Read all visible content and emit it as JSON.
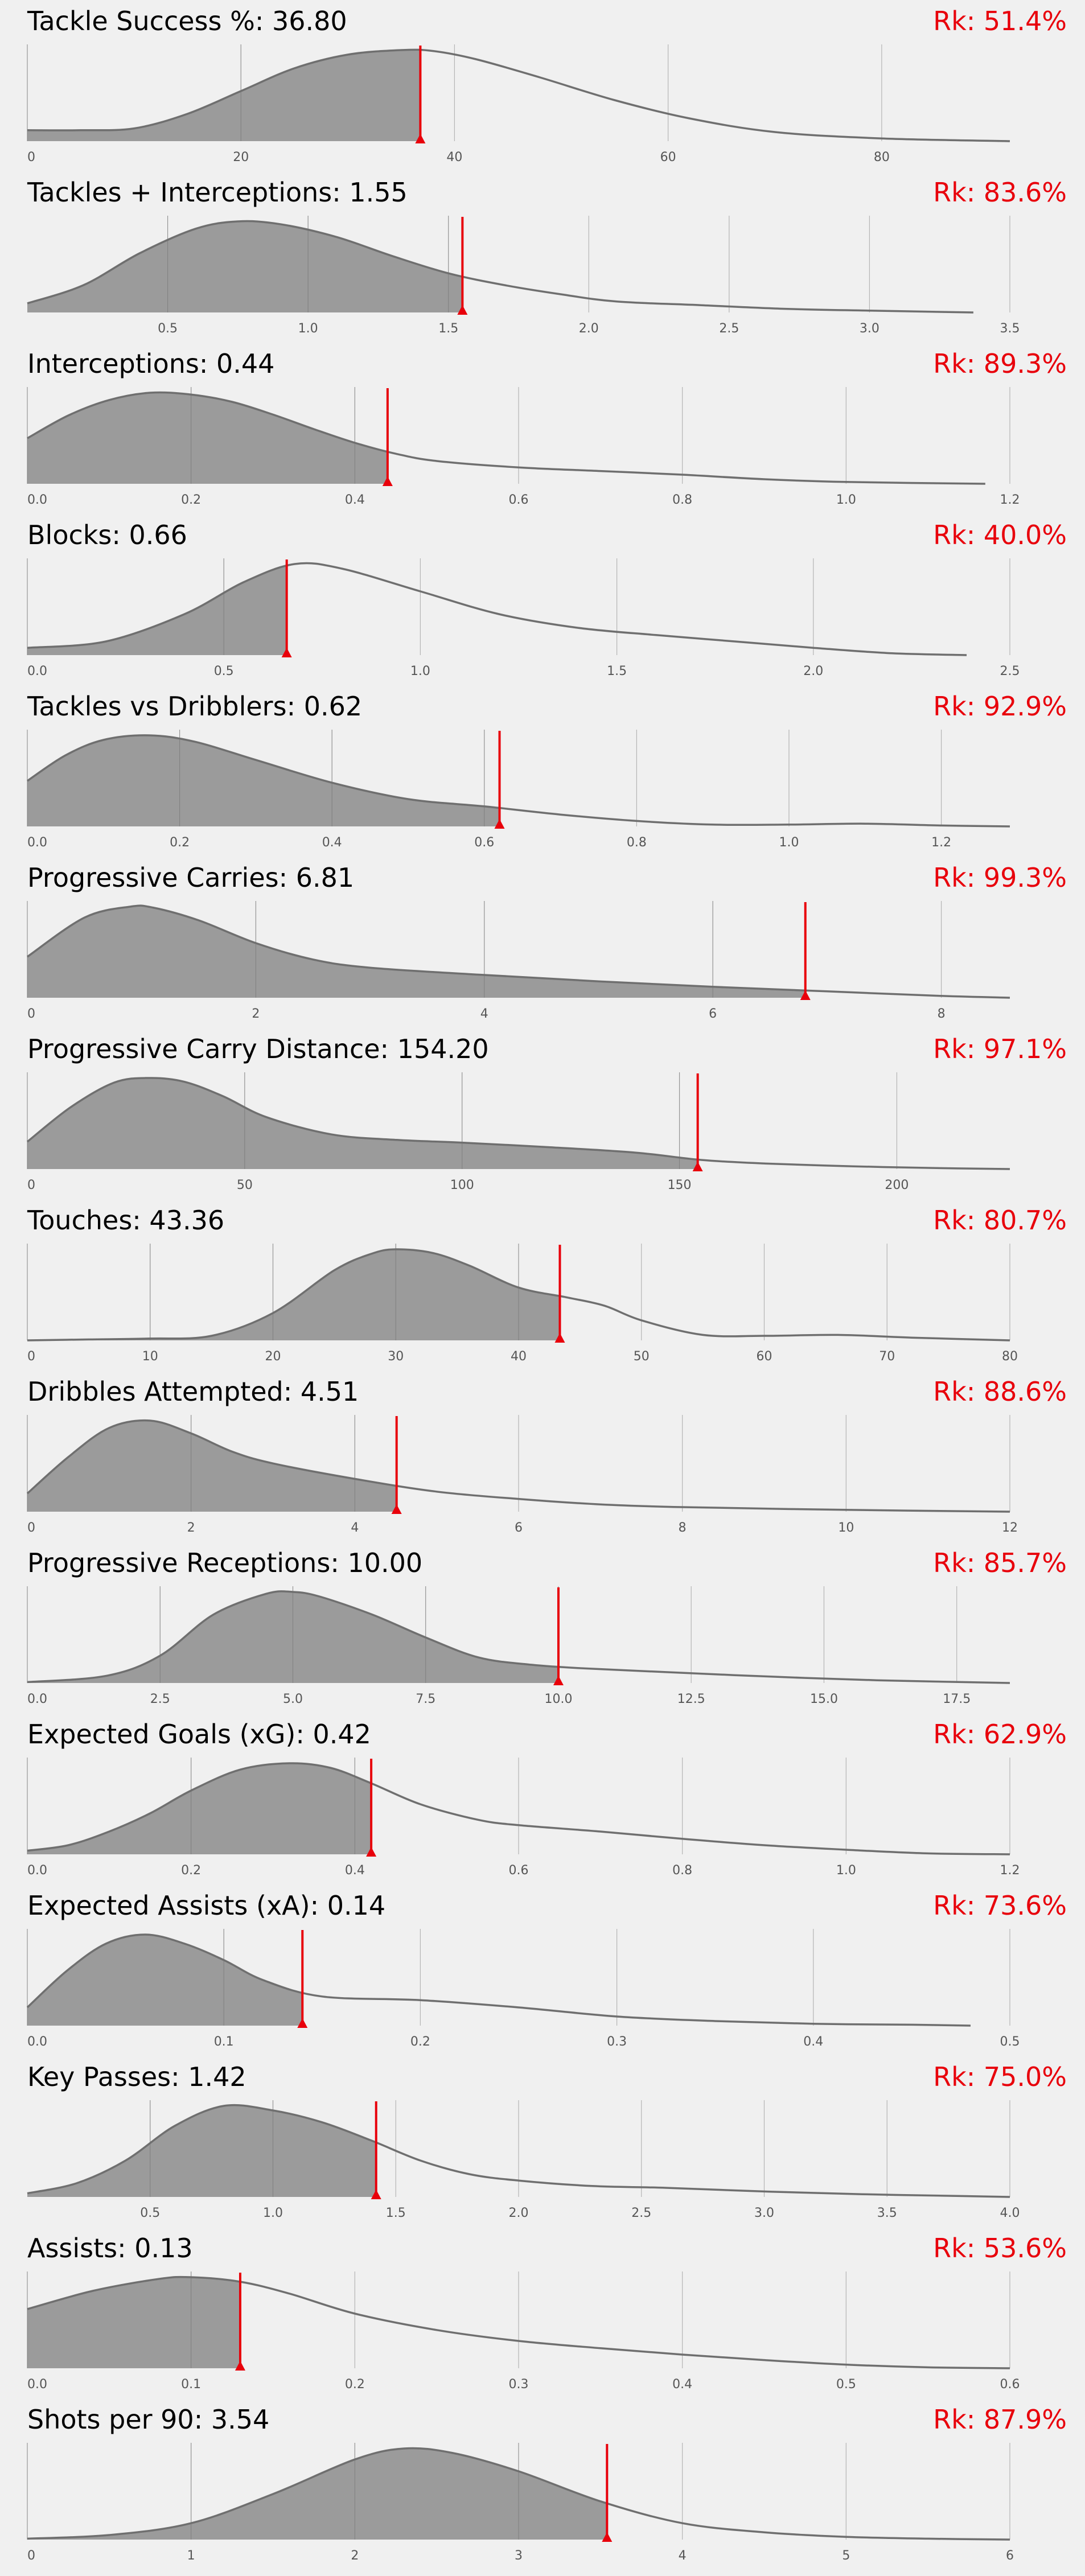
{
  "chart_data": [
    {
      "type": "area",
      "title": "Tackle Success %",
      "value_text": "36.80",
      "rank_text": "Rk: 51.4%",
      "marker": 36.8,
      "xlim": [
        0,
        92
      ],
      "ticks": [
        0,
        20,
        40,
        60,
        80
      ],
      "tick_labels": [
        "0",
        "20",
        "40",
        "60",
        "80"
      ],
      "x": [
        0,
        5,
        10,
        15,
        20,
        25,
        30,
        35,
        38,
        42,
        48,
        55,
        62,
        70,
        80,
        92
      ],
      "y": [
        0.12,
        0.12,
        0.14,
        0.3,
        0.55,
        0.8,
        0.95,
        1.0,
        0.99,
        0.9,
        0.7,
        0.45,
        0.25,
        0.1,
        0.03,
        0.0
      ]
    },
    {
      "type": "area",
      "title": "Tackles + Interceptions",
      "value_text": "1.55",
      "rank_text": "Rk: 83.6%",
      "marker": 1.55,
      "xlim": [
        0,
        3.5
      ],
      "ticks": [
        0.5,
        1.0,
        1.5,
        2.0,
        2.5,
        3.0,
        3.5
      ],
      "tick_labels": [
        "0.5",
        "1.0",
        "1.5",
        "2.0",
        "2.5",
        "3.0",
        "3.5"
      ],
      "x": [
        0,
        0.2,
        0.4,
        0.6,
        0.75,
        0.9,
        1.1,
        1.3,
        1.5,
        1.7,
        1.9,
        2.1,
        2.4,
        2.7,
        3.0,
        3.37
      ],
      "y": [
        0.1,
        0.3,
        0.65,
        0.92,
        1.0,
        0.97,
        0.83,
        0.62,
        0.43,
        0.3,
        0.2,
        0.12,
        0.08,
        0.04,
        0.02,
        0.0
      ]
    },
    {
      "type": "area",
      "title": "Interceptions",
      "value_text": "0.44",
      "rank_text": "Rk: 89.3%",
      "marker": 0.44,
      "xlim": [
        0,
        1.2
      ],
      "ticks": [
        0.0,
        0.2,
        0.4,
        0.6,
        0.8,
        1.0,
        1.2
      ],
      "tick_labels": [
        "0.0",
        "0.2",
        "0.4",
        "0.6",
        "0.8",
        "1.0",
        "1.2"
      ],
      "x": [
        0,
        0.05,
        0.1,
        0.15,
        0.2,
        0.25,
        0.3,
        0.35,
        0.4,
        0.45,
        0.5,
        0.6,
        0.7,
        0.8,
        0.9,
        1.0,
        1.17
      ],
      "y": [
        0.5,
        0.75,
        0.92,
        1.0,
        0.98,
        0.9,
        0.76,
        0.6,
        0.45,
        0.33,
        0.25,
        0.18,
        0.14,
        0.1,
        0.05,
        0.02,
        0.0
      ]
    },
    {
      "type": "area",
      "title": "Blocks",
      "value_text": "0.66",
      "rank_text": "Rk: 40.0%",
      "marker": 0.66,
      "xlim": [
        0,
        2.5
      ],
      "ticks": [
        0.0,
        0.5,
        1.0,
        1.5,
        2.0,
        2.5
      ],
      "tick_labels": [
        "0.0",
        "0.5",
        "1.0",
        "1.5",
        "2.0",
        "2.5"
      ],
      "x": [
        0,
        0.2,
        0.4,
        0.55,
        0.68,
        0.8,
        1.0,
        1.2,
        1.4,
        1.6,
        1.8,
        2.0,
        2.2,
        2.39
      ],
      "y": [
        0.08,
        0.15,
        0.45,
        0.8,
        1.0,
        0.95,
        0.7,
        0.45,
        0.3,
        0.22,
        0.15,
        0.08,
        0.02,
        0.0
      ]
    },
    {
      "type": "area",
      "title": "Tackles vs Dribblers",
      "value_text": "0.62",
      "rank_text": "Rk: 92.9%",
      "marker": 0.62,
      "xlim": [
        0,
        1.29
      ],
      "ticks": [
        0.0,
        0.2,
        0.4,
        0.6,
        0.8,
        1.0,
        1.2
      ],
      "tick_labels": [
        "0.0",
        "0.2",
        "0.4",
        "0.6",
        "0.8",
        "1.0",
        "1.2"
      ],
      "x": [
        0,
        0.05,
        0.1,
        0.16,
        0.22,
        0.3,
        0.4,
        0.5,
        0.6,
        0.7,
        0.8,
        0.9,
        1.0,
        1.1,
        1.2,
        1.29
      ],
      "y": [
        0.5,
        0.78,
        0.95,
        1.0,
        0.93,
        0.73,
        0.48,
        0.3,
        0.22,
        0.13,
        0.06,
        0.02,
        0.02,
        0.03,
        0.01,
        0.0
      ]
    },
    {
      "type": "area",
      "title": "Progressive Carries",
      "value_text": "6.81",
      "rank_text": "Rk: 99.3%",
      "marker": 6.81,
      "xlim": [
        0,
        8.6
      ],
      "ticks": [
        0,
        2,
        4,
        6,
        8
      ],
      "tick_labels": [
        "0",
        "2",
        "4",
        "6",
        "8"
      ],
      "x": [
        0,
        0.5,
        0.9,
        1.1,
        1.5,
        2.0,
        2.5,
        3.0,
        4.0,
        5.0,
        6.0,
        7.0,
        8.0,
        8.6
      ],
      "y": [
        0.45,
        0.88,
        1.0,
        0.99,
        0.85,
        0.6,
        0.42,
        0.33,
        0.25,
        0.18,
        0.12,
        0.07,
        0.02,
        0.0
      ]
    },
    {
      "type": "area",
      "title": "Progressive Carry Distance",
      "value_text": "154.20",
      "rank_text": "Rk: 97.1%",
      "marker": 154.2,
      "xlim": [
        0,
        226
      ],
      "ticks": [
        0,
        50,
        100,
        150,
        200
      ],
      "tick_labels": [
        "0",
        "50",
        "100",
        "150",
        "200"
      ],
      "x": [
        0,
        10,
        20,
        28,
        36,
        45,
        55,
        70,
        85,
        100,
        120,
        140,
        155,
        170,
        190,
        210,
        226
      ],
      "y": [
        0.3,
        0.68,
        0.95,
        1.0,
        0.96,
        0.8,
        0.57,
        0.38,
        0.32,
        0.29,
        0.24,
        0.18,
        0.1,
        0.06,
        0.03,
        0.01,
        0.0
      ]
    },
    {
      "type": "area",
      "title": "Touches",
      "value_text": "43.36",
      "rank_text": "Rk: 80.7%",
      "marker": 43.36,
      "xlim": [
        0,
        80
      ],
      "ticks": [
        0,
        10,
        20,
        30,
        40,
        50,
        60,
        70,
        80
      ],
      "tick_labels": [
        "0",
        "10",
        "20",
        "30",
        "40",
        "50",
        "60",
        "70",
        "80"
      ],
      "x": [
        0,
        5,
        10,
        15,
        20,
        25,
        28,
        30,
        33,
        36,
        40,
        44,
        47,
        50,
        55,
        60,
        66,
        72,
        80
      ],
      "y": [
        0.0,
        0.01,
        0.02,
        0.05,
        0.3,
        0.77,
        0.95,
        1.0,
        0.96,
        0.82,
        0.58,
        0.47,
        0.38,
        0.22,
        0.06,
        0.05,
        0.06,
        0.03,
        0.0
      ]
    },
    {
      "type": "area",
      "title": "Dribbles Attempted",
      "value_text": "4.51",
      "rank_text": "Rk: 88.6%",
      "marker": 4.51,
      "xlim": [
        0,
        12
      ],
      "ticks": [
        0,
        2,
        4,
        6,
        8,
        10,
        12
      ],
      "tick_labels": [
        "0",
        "2",
        "4",
        "6",
        "8",
        "10",
        "12"
      ],
      "x": [
        0,
        0.5,
        1.0,
        1.5,
        2.0,
        2.5,
        3.0,
        4.0,
        5.0,
        6.0,
        7.0,
        8.0,
        10.0,
        12.0
      ],
      "y": [
        0.2,
        0.6,
        0.92,
        1.0,
        0.86,
        0.66,
        0.53,
        0.36,
        0.22,
        0.14,
        0.08,
        0.05,
        0.02,
        0.0
      ]
    },
    {
      "type": "area",
      "title": "Progressive Receptions",
      "value_text": "10.00",
      "rank_text": "Rk: 85.7%",
      "marker": 10.0,
      "xlim": [
        0,
        18.5
      ],
      "ticks": [
        0.0,
        2.5,
        5.0,
        7.5,
        10.0,
        12.5,
        15.0,
        17.5
      ],
      "tick_labels": [
        "0.0",
        "2.5",
        "5.0",
        "7.5",
        "10.0",
        "12.5",
        "15.0",
        "17.5"
      ],
      "x": [
        0,
        1.5,
        2.5,
        3.5,
        4.5,
        5.0,
        5.5,
        6.5,
        7.5,
        8.5,
        9.5,
        10.5,
        12,
        14,
        16,
        18.5
      ],
      "y": [
        0.01,
        0.08,
        0.3,
        0.75,
        0.98,
        1.0,
        0.95,
        0.75,
        0.5,
        0.28,
        0.2,
        0.16,
        0.12,
        0.07,
        0.03,
        0.0
      ]
    },
    {
      "type": "area",
      "title": "Expected Goals (xG)",
      "value_text": "0.42",
      "rank_text": "Rk: 62.9%",
      "marker": 0.42,
      "xlim": [
        0,
        1.2
      ],
      "ticks": [
        0.0,
        0.2,
        0.4,
        0.6,
        0.8,
        1.0,
        1.2
      ],
      "tick_labels": [
        "0.0",
        "0.2",
        "0.4",
        "0.6",
        "0.8",
        "1.0",
        "1.2"
      ],
      "x": [
        0,
        0.05,
        0.1,
        0.15,
        0.2,
        0.26,
        0.32,
        0.37,
        0.42,
        0.48,
        0.55,
        0.6,
        0.7,
        0.8,
        0.9,
        1.0,
        1.1,
        1.2
      ],
      "y": [
        0.04,
        0.1,
        0.25,
        0.45,
        0.7,
        0.93,
        1.0,
        0.95,
        0.78,
        0.55,
        0.38,
        0.32,
        0.25,
        0.17,
        0.1,
        0.05,
        0.01,
        0.0
      ]
    },
    {
      "type": "area",
      "title": "Expected Assists (xA)",
      "value_text": "0.14",
      "rank_text": "Rk: 73.6%",
      "marker": 0.14,
      "xlim": [
        0,
        0.5
      ],
      "ticks": [
        0.0,
        0.1,
        0.2,
        0.3,
        0.4,
        0.5
      ],
      "tick_labels": [
        "0.0",
        "0.1",
        "0.2",
        "0.3",
        "0.4",
        "0.5"
      ],
      "x": [
        0,
        0.02,
        0.04,
        0.06,
        0.08,
        0.1,
        0.12,
        0.15,
        0.2,
        0.25,
        0.3,
        0.35,
        0.4,
        0.45,
        0.48
      ],
      "y": [
        0.2,
        0.6,
        0.9,
        1.0,
        0.9,
        0.72,
        0.5,
        0.32,
        0.28,
        0.2,
        0.1,
        0.05,
        0.02,
        0.01,
        0.0
      ]
    },
    {
      "type": "area",
      "title": "Key Passes",
      "value_text": "1.42",
      "rank_text": "Rk: 75.0%",
      "marker": 1.42,
      "xlim": [
        0,
        4.0
      ],
      "ticks": [
        0.5,
        1.0,
        1.5,
        2.0,
        2.5,
        3.0,
        3.5,
        4.0
      ],
      "tick_labels": [
        "0.5",
        "1.0",
        "1.5",
        "2.0",
        "2.5",
        "3.0",
        "3.5",
        "4.0"
      ],
      "x": [
        0,
        0.2,
        0.4,
        0.6,
        0.8,
        1.0,
        1.2,
        1.4,
        1.6,
        1.8,
        2.0,
        2.3,
        2.6,
        3.0,
        3.4,
        3.8,
        4.0
      ],
      "y": [
        0.04,
        0.15,
        0.4,
        0.78,
        1.0,
        0.95,
        0.82,
        0.62,
        0.4,
        0.25,
        0.18,
        0.12,
        0.1,
        0.06,
        0.03,
        0.01,
        0.0
      ]
    },
    {
      "type": "area",
      "title": "Assists",
      "value_text": "0.13",
      "rank_text": "Rk: 53.6%",
      "marker": 0.13,
      "xlim": [
        0,
        0.6
      ],
      "ticks": [
        0.0,
        0.1,
        0.2,
        0.3,
        0.4,
        0.5,
        0.6
      ],
      "tick_labels": [
        "0.0",
        "0.1",
        "0.2",
        "0.3",
        "0.4",
        "0.5",
        "0.6"
      ],
      "x": [
        0,
        0.04,
        0.08,
        0.1,
        0.13,
        0.16,
        0.2,
        0.25,
        0.3,
        0.35,
        0.4,
        0.45,
        0.5,
        0.55,
        0.6
      ],
      "y": [
        0.65,
        0.85,
        0.98,
        1.0,
        0.95,
        0.82,
        0.6,
        0.42,
        0.3,
        0.22,
        0.15,
        0.09,
        0.04,
        0.01,
        0.0
      ]
    },
    {
      "type": "area",
      "title": "Shots per 90",
      "value_text": "3.54",
      "rank_text": "Rk: 87.9%",
      "marker": 3.54,
      "xlim": [
        0,
        6.0
      ],
      "ticks": [
        0,
        1,
        2,
        3,
        4,
        5,
        6
      ],
      "tick_labels": [
        "0",
        "1",
        "2",
        "3",
        "4",
        "5",
        "6"
      ],
      "x": [
        0,
        0.5,
        1.0,
        1.5,
        2.0,
        2.3,
        2.6,
        3.0,
        3.5,
        4.0,
        4.5,
        5.0,
        5.5,
        6.0
      ],
      "y": [
        0.01,
        0.05,
        0.18,
        0.5,
        0.88,
        1.0,
        0.95,
        0.75,
        0.42,
        0.18,
        0.08,
        0.03,
        0.01,
        0.0
      ]
    }
  ]
}
